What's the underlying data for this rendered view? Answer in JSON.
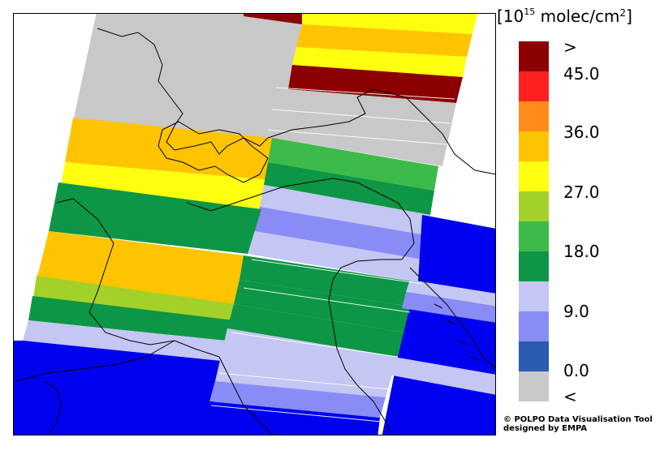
{
  "legend": {
    "title_prefix": "[10",
    "title_exp": "15",
    "title_unit": " molec/cm",
    "title_sq": "2",
    "title_suffix": "]",
    "colors": [
      "#8b0000",
      "#ff2020",
      "#ff8c1a",
      "#ffc400",
      "#ffff10",
      "#a3d12a",
      "#3dbb4a",
      "#0c9645",
      "#c4c6f4",
      "#8a8cf6",
      "#2a5bb0",
      "#c8c8c8"
    ],
    "labels": [
      ">",
      "45.0",
      "36.0",
      "27.0",
      "18.0",
      "9.0",
      "0.0",
      "<"
    ]
  },
  "credit": {
    "line1": "© POLPO Data Visualisation Tool",
    "line2": "designed by EMPA"
  }
}
